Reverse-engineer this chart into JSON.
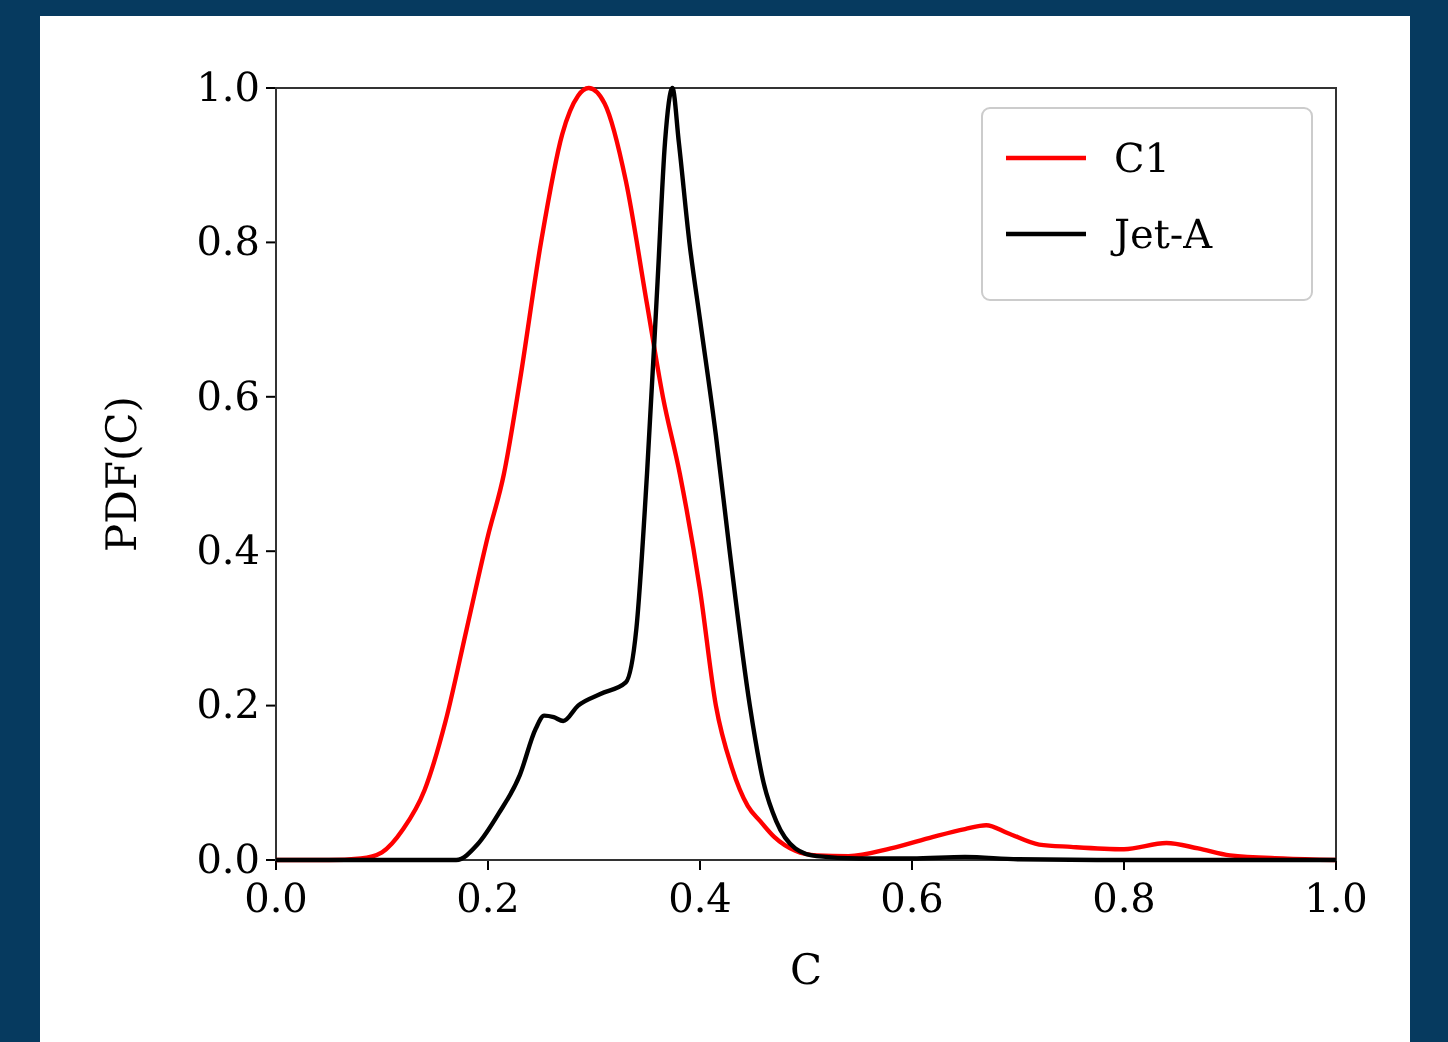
{
  "chart_data": {
    "type": "line",
    "xlabel": "C",
    "ylabel": "PDF(C)",
    "xlim": [
      0,
      1
    ],
    "ylim": [
      0,
      1
    ],
    "xticks": [
      {
        "value": 0,
        "label": "0.0"
      },
      0.2,
      0.4,
      0.6,
      0.8,
      {
        "value": 1,
        "label": "1.0"
      }
    ],
    "yticks": [
      {
        "value": 0,
        "label": "0.0"
      },
      0.2,
      0.4,
      0.6,
      0.8,
      {
        "value": 1,
        "label": "1.0"
      }
    ],
    "legend": "top right",
    "grid": false,
    "series": [
      {
        "name": "C1",
        "color": "#ff0000",
        "x": [
          0,
          0.05,
          0.08,
          0.1,
          0.12,
          0.14,
          0.16,
          0.18,
          0.2,
          0.215,
          0.23,
          0.25,
          0.27,
          0.285,
          0.295,
          0.31,
          0.33,
          0.35,
          0.365,
          0.381,
          0.4,
          0.415,
          0.43,
          0.445,
          0.457,
          0.47,
          0.49,
          0.51,
          0.54,
          0.58,
          0.62,
          0.65,
          0.67,
          0.69,
          0.72,
          0.75,
          0.8,
          0.84,
          0.87,
          0.9,
          0.95,
          1.0
        ],
        "values": [
          0,
          0,
          0.002,
          0.01,
          0.04,
          0.09,
          0.18,
          0.3,
          0.42,
          0.5,
          0.62,
          0.8,
          0.94,
          0.99,
          1.0,
          0.98,
          0.88,
          0.72,
          0.6,
          0.5,
          0.35,
          0.2,
          0.12,
          0.07,
          0.05,
          0.03,
          0.012,
          0.006,
          0.005,
          0.015,
          0.03,
          0.04,
          0.045,
          0.035,
          0.02,
          0.017,
          0.014,
          0.022,
          0.015,
          0.006,
          0.002,
          0
        ]
      },
      {
        "name": "Jet-A",
        "color": "#000000",
        "x": [
          0,
          0.1,
          0.17,
          0.19,
          0.21,
          0.23,
          0.245,
          0.253,
          0.262,
          0.271,
          0.285,
          0.306,
          0.33,
          0.34,
          0.35,
          0.36,
          0.367,
          0.374,
          0.38,
          0.39,
          0.4,
          0.415,
          0.428,
          0.447,
          0.46,
          0.472,
          0.49,
          0.51,
          0.55,
          0.6,
          0.65,
          0.7,
          0.8,
          1.0
        ],
        "values": [
          0,
          0,
          0,
          0.02,
          0.06,
          0.11,
          0.17,
          0.187,
          0.185,
          0.18,
          0.2,
          0.215,
          0.23,
          0.3,
          0.5,
          0.75,
          0.93,
          1.0,
          0.93,
          0.8,
          0.7,
          0.55,
          0.4,
          0.2,
          0.1,
          0.05,
          0.015,
          0.005,
          0.002,
          0.002,
          0.004,
          0.001,
          0,
          0
        ]
      }
    ]
  }
}
